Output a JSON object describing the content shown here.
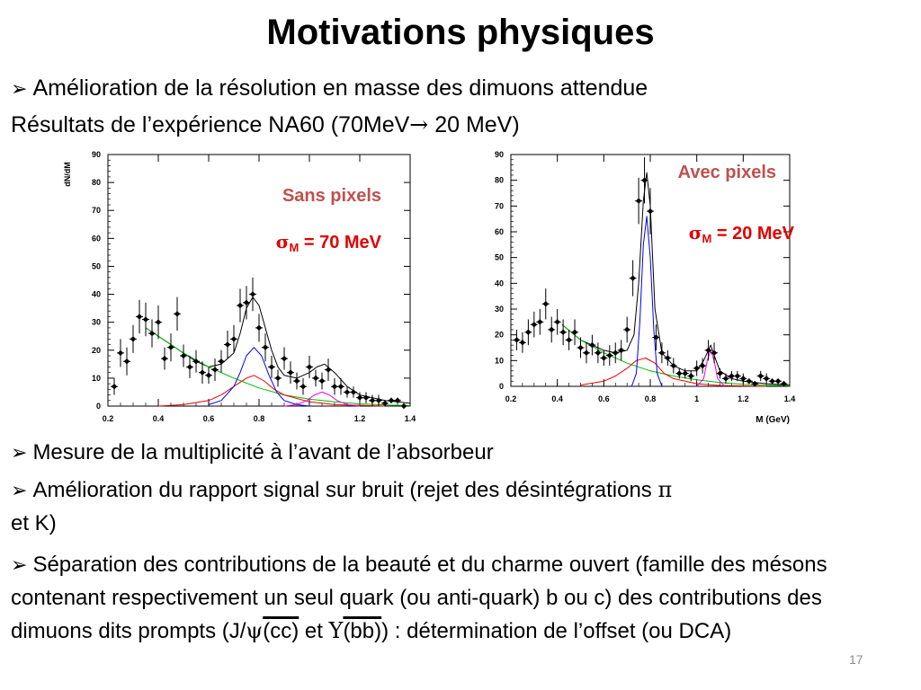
{
  "slide": {
    "title": "Motivations physiques",
    "bullet1": "Amélioration de la résolution en masse des dimuons attendue",
    "results_line_pre": "Résultats de l’expérience NA60 (70MeV",
    "results_arrow": "→",
    "results_line_post": " 20 MeV)",
    "bullet2": "Mesure de la multiplicité à l’avant de l’absorbeur",
    "bullet3_part1": "Amélioration du rapport signal sur bruit (rejet des désintégrations ",
    "bullet3_pi": "π",
    "bullet3_part2": "et K)",
    "bullet4_part1": "Séparation des contributions de la beauté et du charme ouvert (famille des mésons contenant respectivement un seul quark (ou anti-quark) b ou c) des contributions des dimuons dits prompts (J/",
    "bullet4_psi": "ψ",
    "bullet4_cc": "(cc)",
    "bullet4_et": " et ",
    "bullet4_upsilon": "Υ",
    "bullet4_bb": "(bb)",
    "bullet4_part2": ") : détermination de l’offset (ou DCA)",
    "slide_number": "17"
  },
  "chart_data": [
    {
      "type": "scatter",
      "annotation_title": "Sans pixels",
      "annotation_sigma": "σ",
      "annotation_sigma_sub": "M",
      "annotation_value": " = 70 MeV",
      "ylabel": "dN/dM",
      "xlabel": "",
      "xlim": [
        0.2,
        1.4
      ],
      "ylim": [
        0,
        90
      ],
      "xticks": [
        "0.2",
        "0.4",
        "0.6",
        "0.8",
        "1",
        "1.2",
        "1.4"
      ],
      "yticks": [
        "0",
        "10",
        "20",
        "30",
        "40",
        "50",
        "60",
        "70",
        "80",
        "90"
      ],
      "points": {
        "x": [
          0.225,
          0.25,
          0.275,
          0.3,
          0.325,
          0.35,
          0.375,
          0.4,
          0.425,
          0.45,
          0.475,
          0.5,
          0.525,
          0.55,
          0.575,
          0.6,
          0.625,
          0.65,
          0.675,
          0.7,
          0.725,
          0.75,
          0.775,
          0.8,
          0.825,
          0.85,
          0.875,
          0.9,
          0.925,
          0.95,
          0.975,
          1.0,
          1.025,
          1.05,
          1.075,
          1.1,
          1.125,
          1.15,
          1.175,
          1.2,
          1.225,
          1.25,
          1.275,
          1.3,
          1.325,
          1.35,
          1.375
        ],
        "y": [
          7,
          19,
          16,
          24,
          32,
          31,
          26,
          30,
          17,
          21,
          33,
          18,
          14,
          16,
          12,
          11,
          13,
          16,
          22,
          24,
          36,
          37,
          40,
          28,
          21,
          14,
          10,
          17,
          12,
          9,
          7,
          14,
          10,
          9,
          13,
          7,
          7,
          5,
          5,
          3,
          3,
          2,
          2,
          1,
          2,
          2,
          0
        ],
        "err": [
          3,
          5,
          5,
          5,
          6,
          6,
          5,
          6,
          4,
          5,
          6,
          4,
          4,
          4,
          4,
          3,
          4,
          4,
          5,
          5,
          6,
          6,
          6,
          5,
          5,
          4,
          3,
          4,
          4,
          3,
          3,
          4,
          3,
          3,
          4,
          3,
          3,
          2,
          2,
          2,
          2,
          2,
          2,
          1,
          1,
          1,
          1
        ]
      },
      "series": [
        {
          "name": "total",
          "color": "#000000",
          "x": [
            0.35,
            0.4,
            0.45,
            0.5,
            0.55,
            0.6,
            0.65,
            0.7,
            0.725,
            0.75,
            0.775,
            0.8,
            0.825,
            0.85,
            0.875,
            0.9,
            0.95,
            1.0,
            1.03,
            1.06,
            1.1,
            1.15,
            1.2,
            1.3,
            1.4
          ],
          "y": [
            28,
            25,
            22,
            19,
            16,
            14,
            15,
            19,
            26,
            35,
            39,
            36,
            28,
            20,
            14,
            11,
            10,
            12,
            14,
            15,
            12,
            7,
            4,
            2,
            1
          ]
        },
        {
          "name": "continuum",
          "color": "#00bb00",
          "x": [
            0.35,
            0.4,
            0.5,
            0.6,
            0.7,
            0.8,
            0.9,
            1.0,
            1.1,
            1.2,
            1.3,
            1.4
          ],
          "y": [
            28,
            25,
            19,
            14,
            10,
            6.5,
            4,
            2.5,
            1.5,
            0.8,
            0.4,
            0.2
          ]
        },
        {
          "name": "rho",
          "color": "#ee0000",
          "x": [
            0.4,
            0.5,
            0.6,
            0.65,
            0.7,
            0.75,
            0.78,
            0.82,
            0.86,
            0.9,
            1.0,
            1.1,
            1.3
          ],
          "y": [
            0,
            0.5,
            2,
            4,
            7,
            10,
            11,
            9,
            6,
            4,
            1.5,
            0.5,
            0
          ]
        },
        {
          "name": "omega",
          "color": "#0000ee",
          "x": [
            0.6,
            0.65,
            0.7,
            0.725,
            0.75,
            0.78,
            0.81,
            0.84,
            0.87,
            0.9,
            0.95,
            1.0
          ],
          "y": [
            0.5,
            2,
            7,
            12,
            18,
            21,
            18,
            11,
            5,
            2,
            0.5,
            0
          ]
        },
        {
          "name": "phi",
          "color": "#ee00ee",
          "x": [
            0.9,
            0.95,
            0.99,
            1.02,
            1.05,
            1.08,
            1.11,
            1.15,
            1.2
          ],
          "y": [
            0,
            0.5,
            2,
            4,
            5,
            4,
            2,
            0.5,
            0
          ]
        }
      ]
    },
    {
      "type": "scatter",
      "annotation_title": "Avec pixels",
      "annotation_sigma": "σ",
      "annotation_sigma_sub": "M",
      "annotation_value": " = 20 MeV",
      "ylabel": "",
      "xlabel": "M (GeV)",
      "xlim": [
        0.2,
        1.4
      ],
      "ylim": [
        0,
        90
      ],
      "xticks": [
        "0.2",
        "0.4",
        "0.6",
        "0.8",
        "1",
        "1.2",
        "1.4"
      ],
      "yticks": [
        "0",
        "10",
        "20",
        "30",
        "40",
        "50",
        "60",
        "70",
        "80",
        "90"
      ],
      "points": {
        "x": [
          0.225,
          0.25,
          0.275,
          0.3,
          0.325,
          0.35,
          0.375,
          0.4,
          0.425,
          0.45,
          0.475,
          0.5,
          0.525,
          0.55,
          0.575,
          0.6,
          0.625,
          0.65,
          0.675,
          0.7,
          0.725,
          0.75,
          0.775,
          0.8,
          0.825,
          0.85,
          0.875,
          0.9,
          0.925,
          0.95,
          0.975,
          1.0,
          1.025,
          1.05,
          1.075,
          1.1,
          1.125,
          1.15,
          1.175,
          1.2,
          1.225,
          1.25,
          1.275,
          1.3,
          1.325,
          1.35,
          1.375
        ],
        "y": [
          18,
          17,
          21,
          24,
          25,
          32,
          22,
          25,
          21,
          18,
          21,
          15,
          13,
          16,
          13,
          11,
          12,
          13,
          14,
          22,
          42,
          72,
          80,
          68,
          19,
          13,
          11,
          8,
          5,
          5,
          4,
          7,
          8,
          14,
          13,
          5,
          3,
          4,
          4,
          3,
          2,
          1,
          4,
          3,
          2,
          2,
          1
        ],
        "err": [
          4,
          4,
          5,
          5,
          5,
          6,
          5,
          5,
          5,
          4,
          5,
          4,
          4,
          4,
          4,
          3,
          4,
          4,
          4,
          5,
          7,
          9,
          9,
          9,
          5,
          4,
          3,
          3,
          2,
          2,
          2,
          3,
          3,
          4,
          4,
          2,
          2,
          2,
          2,
          2,
          1,
          1,
          2,
          2,
          1,
          1,
          1
        ]
      },
      "series": [
        {
          "name": "total",
          "color": "#000000",
          "x": [
            0.42,
            0.5,
            0.6,
            0.65,
            0.7,
            0.73,
            0.75,
            0.77,
            0.785,
            0.8,
            0.82,
            0.85,
            0.9,
            0.95,
            1.0,
            1.03,
            1.05,
            1.06,
            1.075,
            1.1,
            1.15,
            1.2,
            1.3,
            1.4
          ],
          "y": [
            24,
            18,
            14,
            13,
            14,
            20,
            40,
            72,
            83,
            70,
            30,
            13,
            8,
            6,
            6,
            10,
            14,
            16,
            12,
            6,
            3,
            2,
            1,
            0.5
          ]
        },
        {
          "name": "continuum",
          "color": "#00bb00",
          "x": [
            0.42,
            0.5,
            0.6,
            0.7,
            0.8,
            0.9,
            1.0,
            1.1,
            1.2,
            1.3,
            1.4
          ],
          "y": [
            24,
            18,
            13,
            9,
            6,
            4,
            2.5,
            1.5,
            0.8,
            0.4,
            0.2
          ]
        },
        {
          "name": "rho",
          "color": "#ee0000",
          "x": [
            0.5,
            0.6,
            0.65,
            0.7,
            0.74,
            0.78,
            0.82,
            0.86,
            0.9,
            1.0,
            1.1,
            1.3
          ],
          "y": [
            0.5,
            2,
            4,
            7,
            10,
            11,
            9,
            5,
            3,
            1,
            0.3,
            0
          ]
        },
        {
          "name": "omega",
          "color": "#0000ee",
          "x": [
            0.72,
            0.74,
            0.755,
            0.77,
            0.785,
            0.8,
            0.815,
            0.83,
            0.85
          ],
          "y": [
            0,
            5,
            25,
            55,
            66,
            50,
            22,
            5,
            0
          ]
        },
        {
          "name": "phi",
          "color": "#ee00ee",
          "x": [
            1.0,
            1.03,
            1.045,
            1.06,
            1.075,
            1.09,
            1.12
          ],
          "y": [
            0,
            3,
            10,
            14,
            10,
            3,
            0
          ]
        }
      ]
    }
  ]
}
